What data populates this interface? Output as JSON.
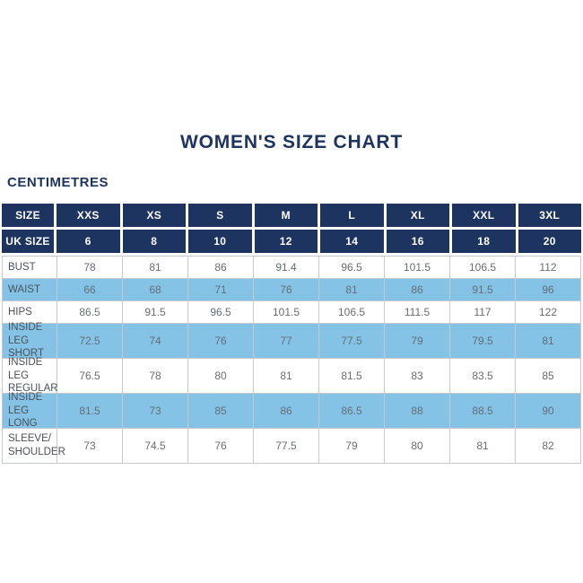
{
  "page": {
    "title": "WOMEN'S SIZE CHART",
    "unit_label": "CENTIMETRES"
  },
  "colors": {
    "navy": "#1e3460",
    "light_blue": "#84c3e6",
    "border_gray": "#c3c9cf",
    "label_text": "#49525c",
    "value_text": "#646e77",
    "header_text": "#ffffff",
    "title_text": "#1e3460"
  },
  "chart_data": {
    "type": "table",
    "header_rows": [
      {
        "label": "SIZE",
        "values": [
          "XXS",
          "XS",
          "S",
          "M",
          "L",
          "XL",
          "XXL",
          "3XL"
        ]
      },
      {
        "label": "UK SIZE",
        "values": [
          "6",
          "8",
          "10",
          "12",
          "14",
          "16",
          "18",
          "20"
        ]
      }
    ],
    "rows": [
      {
        "label": "BUST",
        "values": [
          "78",
          "81",
          "86",
          "91.4",
          "96.5",
          "101.5",
          "106.5",
          "112"
        ],
        "shaded": false
      },
      {
        "label": "WAIST",
        "values": [
          "66",
          "68",
          "71",
          "76",
          "81",
          "86",
          "91.5",
          "96"
        ],
        "shaded": true
      },
      {
        "label": "HIPS",
        "values": [
          "86.5",
          "91.5",
          "96.5",
          "101.5",
          "106.5",
          "111.5",
          "117",
          "122"
        ],
        "shaded": false
      },
      {
        "label": "INSIDE LEG\nSHORT",
        "values": [
          "72.5",
          "74",
          "76",
          "77",
          "77.5",
          "79",
          "79.5",
          "81"
        ],
        "shaded": true
      },
      {
        "label": "INSIDE LEG\nREGULAR",
        "values": [
          "76.5",
          "78",
          "80",
          "81",
          "81.5",
          "83",
          "83.5",
          "85"
        ],
        "shaded": false
      },
      {
        "label": "INSIDE LEG\nLONG",
        "values": [
          "81.5",
          "73",
          "85",
          "86",
          "86.5",
          "88",
          "88.5",
          "90"
        ],
        "shaded": true
      },
      {
        "label": "SLEEVE/\nSHOULDER",
        "values": [
          "73",
          "74.5",
          "76",
          "77.5",
          "79",
          "80",
          "81",
          "82"
        ],
        "shaded": false
      }
    ]
  }
}
